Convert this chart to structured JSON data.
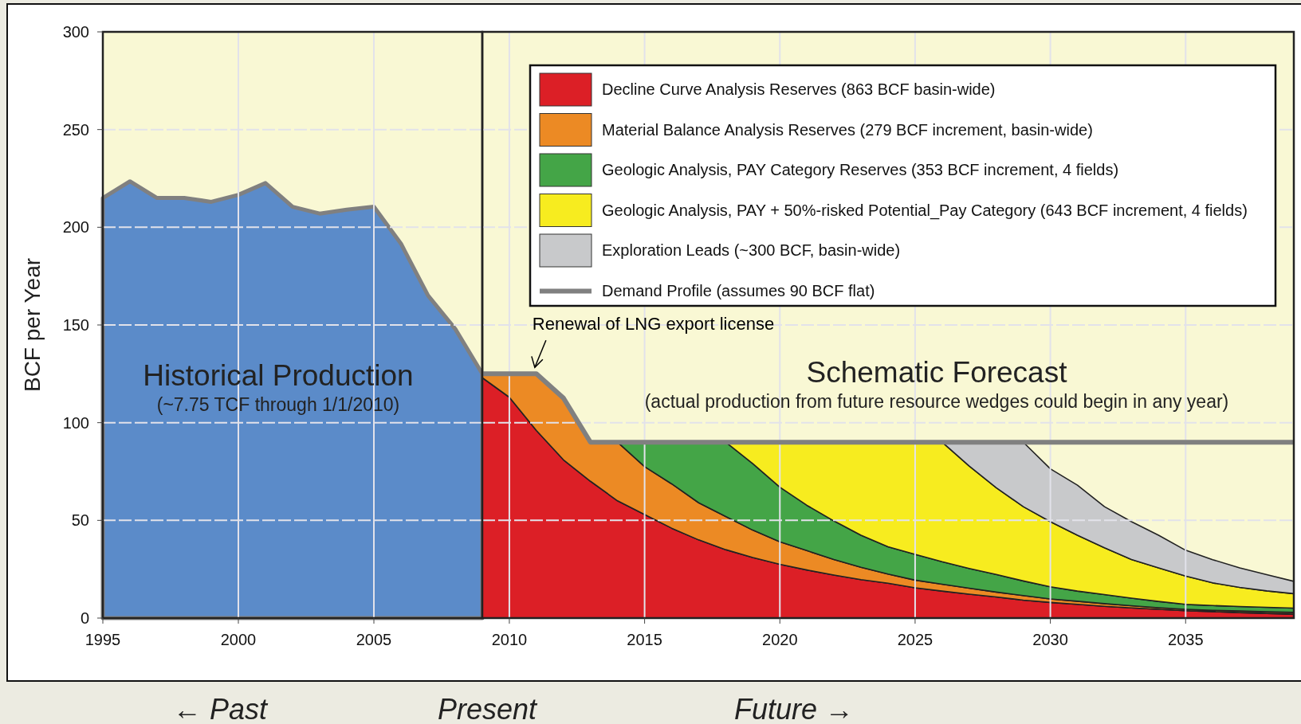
{
  "chart_data": [
    {
      "type": "area",
      "ylabel": "BCF per Year",
      "xlim": [
        1995,
        2009
      ],
      "xticks": [
        1995,
        2000,
        2005
      ],
      "ylim": [
        0,
        300
      ],
      "yticks": [
        0,
        50,
        100,
        150,
        200,
        250,
        300
      ],
      "grid": true,
      "x": [
        1995,
        1996,
        1997,
        1998,
        1999,
        2000,
        2001,
        2002,
        2003,
        2004,
        2005,
        2006,
        2007,
        2008,
        2009
      ],
      "series": [
        {
          "color": "#5b8bc9",
          "values": [
            215,
            223.5,
            215,
            215,
            213,
            216.6,
            222.6,
            210.5,
            207,
            209,
            210.5,
            191.6,
            165,
            148,
            125
          ]
        }
      ],
      "annotations": [
        "Historical Production",
        "(~7.75 TCF through 1/1/2010)",
        "← Past"
      ]
    },
    {
      "type": "area",
      "stacked": true,
      "xlim": [
        2009,
        2039
      ],
      "xticks": [
        2010,
        2015,
        2020,
        2025,
        2030,
        2035
      ],
      "ylim": [
        0,
        300
      ],
      "yticks": [
        0,
        50,
        100,
        150,
        200,
        250,
        300
      ],
      "tick_labels": "x",
      "grid": true,
      "legend": "top right",
      "x": [
        2009,
        2010,
        2011,
        2012,
        2013,
        2014,
        2015,
        2016,
        2017,
        2018,
        2019,
        2020,
        2021,
        2022,
        2023,
        2024,
        2025,
        2026,
        2027,
        2028,
        2029,
        2030,
        2031,
        2032,
        2033,
        2034,
        2035,
        2036,
        2037,
        2038,
        2039
      ],
      "series": [
        {
          "name": "Decline Curve Analysis Reserves (863 BCF basin-wide)",
          "color": "#dc1f26",
          "values": [
            123,
            113,
            96,
            81,
            70,
            60,
            53,
            46,
            40,
            35,
            31,
            27.5,
            24.6,
            22,
            19.7,
            17.8,
            15.5,
            13.8,
            12.2,
            10.8,
            9.2,
            8,
            7,
            6,
            5.2,
            4.5,
            3.8,
            3.3,
            2.8,
            2.4,
            2
          ]
        },
        {
          "name": "Material Balance Analysis Reserves (279 BCF increment, basin-wide)",
          "color": "#ec8a24",
          "values": [
            2,
            12,
            29,
            31.6,
            20,
            30,
            24.5,
            22.7,
            19,
            17,
            14,
            11.5,
            9.9,
            8,
            6.3,
            4.7,
            3.9,
            3.5,
            3.1,
            2.5,
            2.3,
            1.8,
            1.6,
            1.4,
            1.1,
            0.8,
            0.7,
            0.7,
            0.8,
            0.8,
            0.9
          ]
        },
        {
          "name": "Geologic Analysis, PAY Category Reserves (353 BCF increment, 4 fields)",
          "color": "#44a547",
          "values": [
            0,
            0,
            0,
            0,
            0,
            0,
            12.5,
            21.3,
            31,
            38,
            34,
            28,
            23.2,
            19.7,
            16.4,
            14,
            13.2,
            11.5,
            10.1,
            9,
            7.5,
            6.2,
            5.2,
            4.6,
            3.9,
            3.2,
            2.5,
            2.4,
            2.3,
            2.3,
            2.2
          ]
        },
        {
          "name": "Geologic Analysis, PAY + 50%-risked Potential_Pay Category (643 BCF increment, 4 fields)",
          "color": "#f7ec1f",
          "values": [
            0,
            0,
            0,
            0,
            0,
            0,
            0,
            0,
            0,
            0,
            11,
            23,
            32.3,
            40.3,
            47.6,
            53.5,
            57.4,
            61.2,
            52.4,
            44.4,
            38,
            33.3,
            28.6,
            24,
            19.8,
            17.2,
            14.5,
            11.6,
            9.8,
            8.4,
            7.4
          ]
        },
        {
          "name": "Exploration Leads (~300 BCF, basin-wide)",
          "color": "#c8c9cb",
          "values": [
            0,
            0,
            0,
            0,
            0,
            0,
            0,
            0,
            0,
            0,
            0,
            0,
            0,
            0,
            0,
            0,
            0,
            0,
            12.2,
            23.3,
            33,
            27.1,
            25.6,
            21,
            19.3,
            16.7,
            13.2,
            11.9,
            10,
            8.3,
            6.3
          ]
        },
        {
          "name": "Demand Profile (assumes 90 BCF flat)",
          "type": "line",
          "color": "#808080",
          "values": [
            125,
            125,
            125,
            112.6,
            90,
            90,
            90,
            90,
            90,
            90,
            90,
            90,
            90,
            90,
            90,
            90,
            90,
            90,
            90,
            90,
            90,
            90,
            90,
            90,
            90,
            90,
            90,
            90,
            90,
            90,
            90
          ]
        }
      ],
      "annotations": [
        "Schematic Forecast",
        "(actual production from future resource wedges could begin in any year)",
        {
          "text": "Renewal of LNG export license",
          "x": 2011,
          "y": 125
        },
        "Present",
        "Future →"
      ]
    }
  ]
}
